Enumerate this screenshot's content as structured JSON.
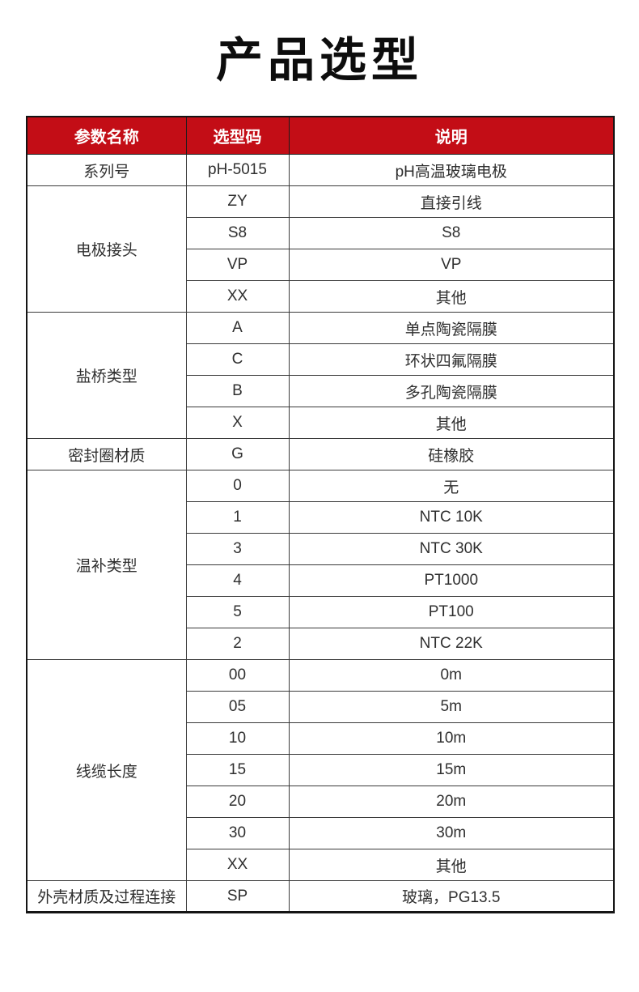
{
  "page": {
    "title": "产品选型"
  },
  "colors": {
    "header_bg": "#c30d16",
    "header_text": "#ffffff",
    "body_text": "#2f2f2f",
    "inner_border": "#3a3a3a",
    "outer_border": "#141414"
  },
  "table": {
    "headers": [
      "参数名称",
      "选型码",
      "说明"
    ],
    "groups": [
      {
        "name": "系列号",
        "rows": [
          {
            "code": "pH-5015",
            "desc": "pH高温玻璃电极"
          }
        ]
      },
      {
        "name": "电极接头",
        "rows": [
          {
            "code": "ZY",
            "desc": "直接引线"
          },
          {
            "code": "S8",
            "desc": "S8"
          },
          {
            "code": "VP",
            "desc": "VP"
          },
          {
            "code": "XX",
            "desc": "其他"
          }
        ]
      },
      {
        "name": "盐桥类型",
        "rows": [
          {
            "code": "A",
            "desc": "单点陶瓷隔膜"
          },
          {
            "code": "C",
            "desc": "环状四氟隔膜"
          },
          {
            "code": "B",
            "desc": "多孔陶瓷隔膜"
          },
          {
            "code": "X",
            "desc": "其他"
          }
        ]
      },
      {
        "name": "密封圈材质",
        "rows": [
          {
            "code": "G",
            "desc": "硅橡胶"
          }
        ]
      },
      {
        "name": "温补类型",
        "rows": [
          {
            "code": "0",
            "desc": "无"
          },
          {
            "code": "1",
            "desc": "NTC 10K"
          },
          {
            "code": "3",
            "desc": "NTC 30K"
          },
          {
            "code": "4",
            "desc": "PT1000"
          },
          {
            "code": "5",
            "desc": "PT100"
          },
          {
            "code": "2",
            "desc": "NTC 22K"
          }
        ]
      },
      {
        "name": "线缆长度",
        "rows": [
          {
            "code": "00",
            "desc": "0m"
          },
          {
            "code": "05",
            "desc": "5m"
          },
          {
            "code": "10",
            "desc": "10m"
          },
          {
            "code": "15",
            "desc": "15m"
          },
          {
            "code": "20",
            "desc": "20m"
          },
          {
            "code": "30",
            "desc": "30m"
          },
          {
            "code": "XX",
            "desc": "其他"
          }
        ]
      },
      {
        "name": "外壳材质及过程连接",
        "rows": [
          {
            "code": "SP",
            "desc": "玻璃，PG13.5"
          }
        ]
      }
    ]
  }
}
